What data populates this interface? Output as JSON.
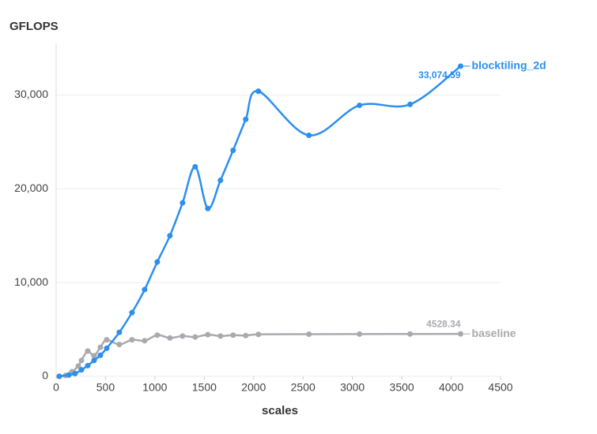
{
  "chart_data": {
    "type": "line",
    "y_title": "GFLOPS",
    "x_title": "scales",
    "xlim": [
      0,
      4500
    ],
    "xticks": [
      0,
      500,
      1000,
      1500,
      2000,
      2500,
      3000,
      3500,
      4000,
      4500
    ],
    "ylim": [
      0,
      35500
    ],
    "yticks": [
      0,
      {
        "value": 10000,
        "label": "10,000"
      },
      {
        "value": 20000,
        "label": "20,000"
      },
      {
        "value": 30000,
        "label": "30,000"
      }
    ],
    "grid": true,
    "series": [
      {
        "name": "blocktiling_2d",
        "color": "#2b8ff0",
        "x": [
          32,
          128,
          192,
          256,
          320,
          384,
          448,
          512,
          640,
          768,
          896,
          1024,
          1152,
          1280,
          1408,
          1536,
          1664,
          1792,
          1920,
          2048,
          2560,
          3072,
          3584,
          4096
        ],
        "values": [
          10,
          150,
          300,
          700,
          1150,
          1700,
          2250,
          3000,
          4700,
          6800,
          9250,
          12200,
          15000,
          18500,
          22350,
          17900,
          20900,
          24100,
          27400,
          30400,
          25700,
          28900,
          29000,
          33074.59
        ],
        "end_label": "33,074.59"
      },
      {
        "name": "baseline",
        "color": "#a9a9ae",
        "x": [
          32,
          96,
          160,
          224,
          256,
          320,
          384,
          448,
          512,
          640,
          768,
          896,
          1024,
          1152,
          1280,
          1408,
          1536,
          1664,
          1792,
          1920,
          2048,
          2560,
          3072,
          3584,
          4096
        ],
        "values": [
          0,
          100,
          500,
          1100,
          1700,
          2700,
          2200,
          3100,
          3900,
          3400,
          3900,
          3800,
          4400,
          4100,
          4300,
          4200,
          4450,
          4300,
          4400,
          4350,
          4480,
          4500,
          4510,
          4520,
          4528.34
        ],
        "end_label": "4528.34"
      }
    ]
  }
}
